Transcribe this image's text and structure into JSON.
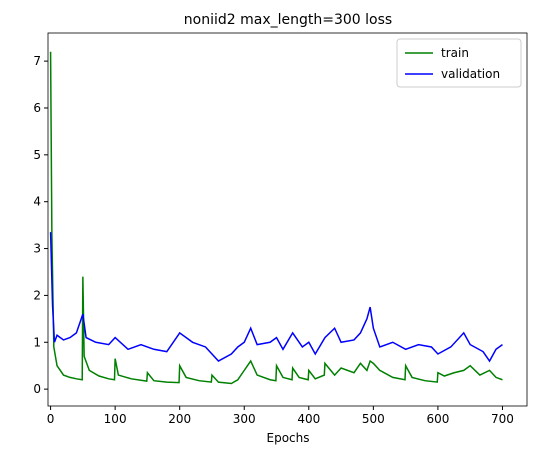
{
  "chart_data": {
    "type": "line",
    "title": "noniid2 max_length=300 loss",
    "xlabel": "Epochs",
    "xlim": [
      -4,
      738
    ],
    "ylim": [
      -0.36,
      7.6
    ],
    "xticks": [
      0,
      100,
      200,
      300,
      400,
      500,
      600,
      700
    ],
    "yticks": [
      0,
      1,
      2,
      3,
      4,
      5,
      6,
      7
    ],
    "legend": "upper right",
    "series": [
      {
        "name": "train",
        "color": "#008000",
        "x": [
          0,
          2,
          5,
          10,
          20,
          30,
          40,
          49,
          50,
          52,
          60,
          75,
          90,
          99,
          100,
          105,
          125,
          149,
          150,
          160,
          180,
          199,
          200,
          210,
          230,
          249,
          250,
          260,
          280,
          290,
          300,
          305,
          310,
          320,
          340,
          349,
          350,
          360,
          374,
          375,
          385,
          399,
          400,
          410,
          424,
          425,
          440,
          450,
          470,
          480,
          490,
          495,
          500,
          510,
          530,
          549,
          550,
          560,
          580,
          599,
          600,
          610,
          625,
          640,
          650,
          665,
          680,
          690,
          700
        ],
        "values": [
          7.2,
          3.3,
          0.9,
          0.5,
          0.3,
          0.25,
          0.22,
          0.2,
          2.4,
          0.7,
          0.4,
          0.28,
          0.22,
          0.2,
          0.65,
          0.3,
          0.22,
          0.17,
          0.35,
          0.18,
          0.15,
          0.14,
          0.5,
          0.25,
          0.18,
          0.15,
          0.3,
          0.15,
          0.12,
          0.2,
          0.4,
          0.5,
          0.6,
          0.3,
          0.2,
          0.18,
          0.5,
          0.25,
          0.2,
          0.45,
          0.25,
          0.2,
          0.4,
          0.22,
          0.3,
          0.55,
          0.3,
          0.45,
          0.35,
          0.55,
          0.4,
          0.6,
          0.55,
          0.4,
          0.25,
          0.2,
          0.5,
          0.25,
          0.18,
          0.15,
          0.35,
          0.28,
          0.35,
          0.4,
          0.5,
          0.3,
          0.4,
          0.25,
          0.2
        ]
      },
      {
        "name": "validation",
        "color": "#0000ff",
        "x": [
          0,
          3,
          6,
          10,
          20,
          30,
          40,
          50,
          55,
          70,
          90,
          100,
          120,
          140,
          160,
          180,
          200,
          220,
          240,
          250,
          260,
          280,
          290,
          300,
          310,
          320,
          340,
          350,
          360,
          375,
          390,
          400,
          410,
          425,
          440,
          450,
          470,
          480,
          490,
          495,
          500,
          510,
          530,
          550,
          570,
          590,
          600,
          620,
          640,
          650,
          670,
          680,
          690,
          700
        ],
        "values": [
          3.35,
          1.8,
          1.0,
          1.15,
          1.05,
          1.1,
          1.2,
          1.6,
          1.1,
          1.0,
          0.95,
          1.1,
          0.85,
          0.95,
          0.85,
          0.8,
          1.2,
          1.0,
          0.9,
          0.75,
          0.6,
          0.75,
          0.9,
          1.0,
          1.3,
          0.95,
          1.0,
          1.1,
          0.85,
          1.2,
          0.9,
          1.0,
          0.75,
          1.1,
          1.3,
          1.0,
          1.05,
          1.2,
          1.5,
          1.75,
          1.3,
          0.9,
          1.0,
          0.85,
          0.95,
          0.9,
          0.75,
          0.9,
          1.2,
          0.95,
          0.8,
          0.6,
          0.85,
          0.95
        ]
      }
    ]
  }
}
